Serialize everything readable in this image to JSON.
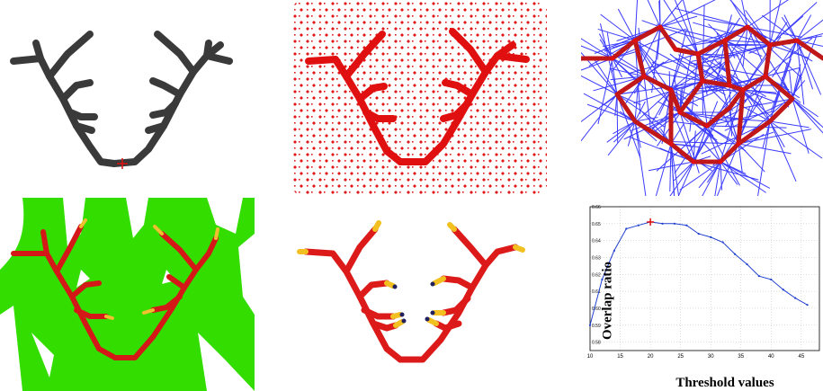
{
  "colors": {
    "skeleton_gray": "#3a3a3a",
    "vessel_red": "#e01010",
    "dark_red": "#c01818",
    "projection_blue": "#1a1aff",
    "field_green": "#33dd00",
    "chart_line": "#1f3fd0",
    "optimum_marker": "#e01010"
  },
  "icons": {
    "optimum_marker": "red-plus-marker",
    "root_marker": "red-plus-marker"
  },
  "chart_data": {
    "type": "line",
    "xlabel": "Threshold values",
    "ylabel": "Overlap ratio",
    "xlim": [
      10,
      48
    ],
    "ylim": [
      0.575,
      0.66
    ],
    "x_ticks": [
      10,
      15,
      20,
      25,
      30,
      35,
      40,
      45
    ],
    "y_ticks": [
      0.58,
      0.59,
      0.6,
      0.61,
      0.62,
      0.63,
      0.64,
      0.65,
      0.66
    ],
    "x": [
      10,
      12,
      14,
      16,
      18,
      20,
      22,
      24,
      26,
      28,
      30,
      32,
      34,
      36,
      38,
      40,
      42,
      44,
      46
    ],
    "y": [
      0.59,
      0.617,
      0.634,
      0.647,
      0.649,
      0.651,
      0.65,
      0.65,
      0.649,
      0.644,
      0.642,
      0.639,
      0.632,
      0.626,
      0.619,
      0.617,
      0.611,
      0.606,
      0.602
    ],
    "optimum": {
      "x": 20,
      "y": 0.651
    },
    "grid": true
  }
}
